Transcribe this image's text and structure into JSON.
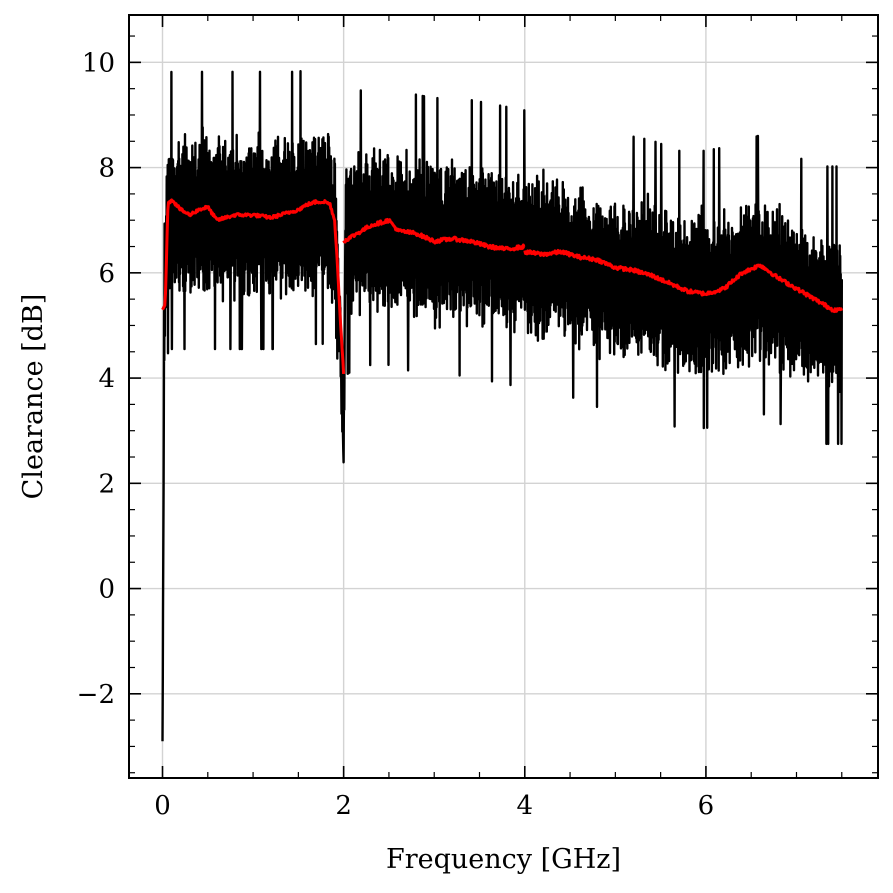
{
  "chart_data": {
    "type": "line",
    "xlabel": "Frequency [GHz]",
    "ylabel": "Clearance [dB]",
    "xlim": [
      -0.37,
      7.9
    ],
    "ylim": [
      -3.6,
      10.9
    ],
    "x_ticks": [
      0,
      2,
      4,
      6
    ],
    "x_tick_labels": [
      "0",
      "2",
      "4",
      "6"
    ],
    "y_ticks": [
      -2,
      0,
      2,
      4,
      6,
      8,
      10
    ],
    "y_tick_labels": [
      "−2",
      "0",
      "2",
      "4",
      "6",
      "8",
      "10"
    ],
    "grid": true,
    "series": [
      {
        "color": "#000000",
        "style": "noisy",
        "x": [
          0,
          0.02,
          0.05,
          0.1,
          0.3,
          0.5,
          0.7,
          0.9,
          1.1,
          1.3,
          1.5,
          1.7,
          1.85,
          1.9,
          1.97,
          2.0,
          2.02,
          2.1,
          2.3,
          2.5,
          2.7,
          3.0,
          3.3,
          3.6,
          3.9,
          4.2,
          4.5,
          4.8,
          5.1,
          5.4,
          5.7,
          6.0,
          6.3,
          6.6,
          6.9,
          7.2,
          7.5
        ],
        "y": [
          -2.9,
          5.5,
          7.0,
          7.1,
          7.1,
          7.1,
          7.1,
          7.1,
          7.1,
          7.1,
          7.1,
          7.2,
          7.2,
          6.6,
          4.5,
          2.3,
          6.6,
          6.7,
          6.8,
          6.8,
          6.7,
          6.6,
          6.6,
          6.5,
          6.4,
          6.3,
          6.2,
          6.0,
          5.9,
          5.8,
          5.6,
          5.6,
          5.7,
          5.9,
          5.6,
          5.3,
          5.3
        ],
        "noise_amplitude": 1.7,
        "peak_max": 10.3,
        "trough_min": 2.4
      },
      {
        "color": "#ff0000",
        "style": "smooth",
        "segments": [
          {
            "x": [
              0,
              0.03,
              0.06,
              0.1,
              0.2,
              0.3,
              0.4,
              0.5,
              0.6,
              0.7,
              0.8,
              1.0,
              1.2,
              1.4,
              1.5,
              1.6,
              1.7,
              1.8,
              1.85,
              1.9,
              1.93,
              1.96,
              2.0
            ],
            "y": [
              5.3,
              5.4,
              7.3,
              7.4,
              7.2,
              7.1,
              7.2,
              7.25,
              7.0,
              7.05,
              7.1,
              7.1,
              7.05,
              7.15,
              7.2,
              7.3,
              7.35,
              7.35,
              7.3,
              7.0,
              6.2,
              5.2,
              4.1
            ]
          },
          {
            "x": [
              2.0,
              2.1,
              2.2,
              2.3,
              2.4,
              2.5,
              2.6,
              2.8,
              3.0,
              3.2,
              3.4,
              3.6,
              3.8,
              4.0
            ],
            "y": [
              6.6,
              6.7,
              6.8,
              6.9,
              6.95,
              7.0,
              6.8,
              6.75,
              6.6,
              6.65,
              6.6,
              6.5,
              6.45,
              6.5
            ]
          },
          {
            "x": [
              4.0,
              4.2,
              4.4,
              4.6,
              4.8,
              5.0,
              5.2,
              5.4,
              5.6,
              5.8,
              6.0,
              6.2,
              6.4,
              6.6,
              6.8,
              7.0,
              7.2,
              7.4,
              7.5
            ],
            "y": [
              6.4,
              6.35,
              6.4,
              6.3,
              6.25,
              6.1,
              6.05,
              5.95,
              5.8,
              5.65,
              5.6,
              5.7,
              6.0,
              6.15,
              5.9,
              5.7,
              5.5,
              5.3,
              5.3
            ]
          }
        ]
      }
    ]
  }
}
